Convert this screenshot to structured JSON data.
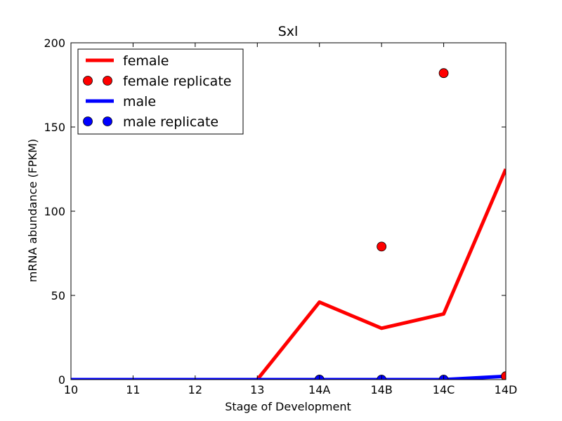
{
  "chart_data": {
    "type": "line",
    "title": "Sxl",
    "xlabel": "Stage of Development",
    "ylabel": "mRNA abundance (FPKM)",
    "categories": [
      "10",
      "11",
      "12",
      "13",
      "14A",
      "14B",
      "14C",
      "14D"
    ],
    "ylim": [
      0,
      200
    ],
    "yticks": [
      "0",
      "50",
      "100",
      "150",
      "200"
    ],
    "grid": false,
    "legend_position": "top-left",
    "series": [
      {
        "name": "female",
        "kind": "line",
        "color": "#ff0000",
        "values": [
          0,
          0,
          0,
          0,
          46,
          30.5,
          39,
          125
        ]
      },
      {
        "name": "female replicate",
        "kind": "markers",
        "color": "#ff0000",
        "values": [
          null,
          null,
          null,
          null,
          0,
          79,
          182,
          2
        ]
      },
      {
        "name": "male",
        "kind": "line",
        "color": "#0000ff",
        "values": [
          0,
          0,
          0,
          0,
          0,
          0,
          0,
          2
        ]
      },
      {
        "name": "male replicate",
        "kind": "markers",
        "color": "#0000ff",
        "values": [
          null,
          null,
          null,
          null,
          0,
          0,
          0,
          null
        ]
      }
    ]
  }
}
